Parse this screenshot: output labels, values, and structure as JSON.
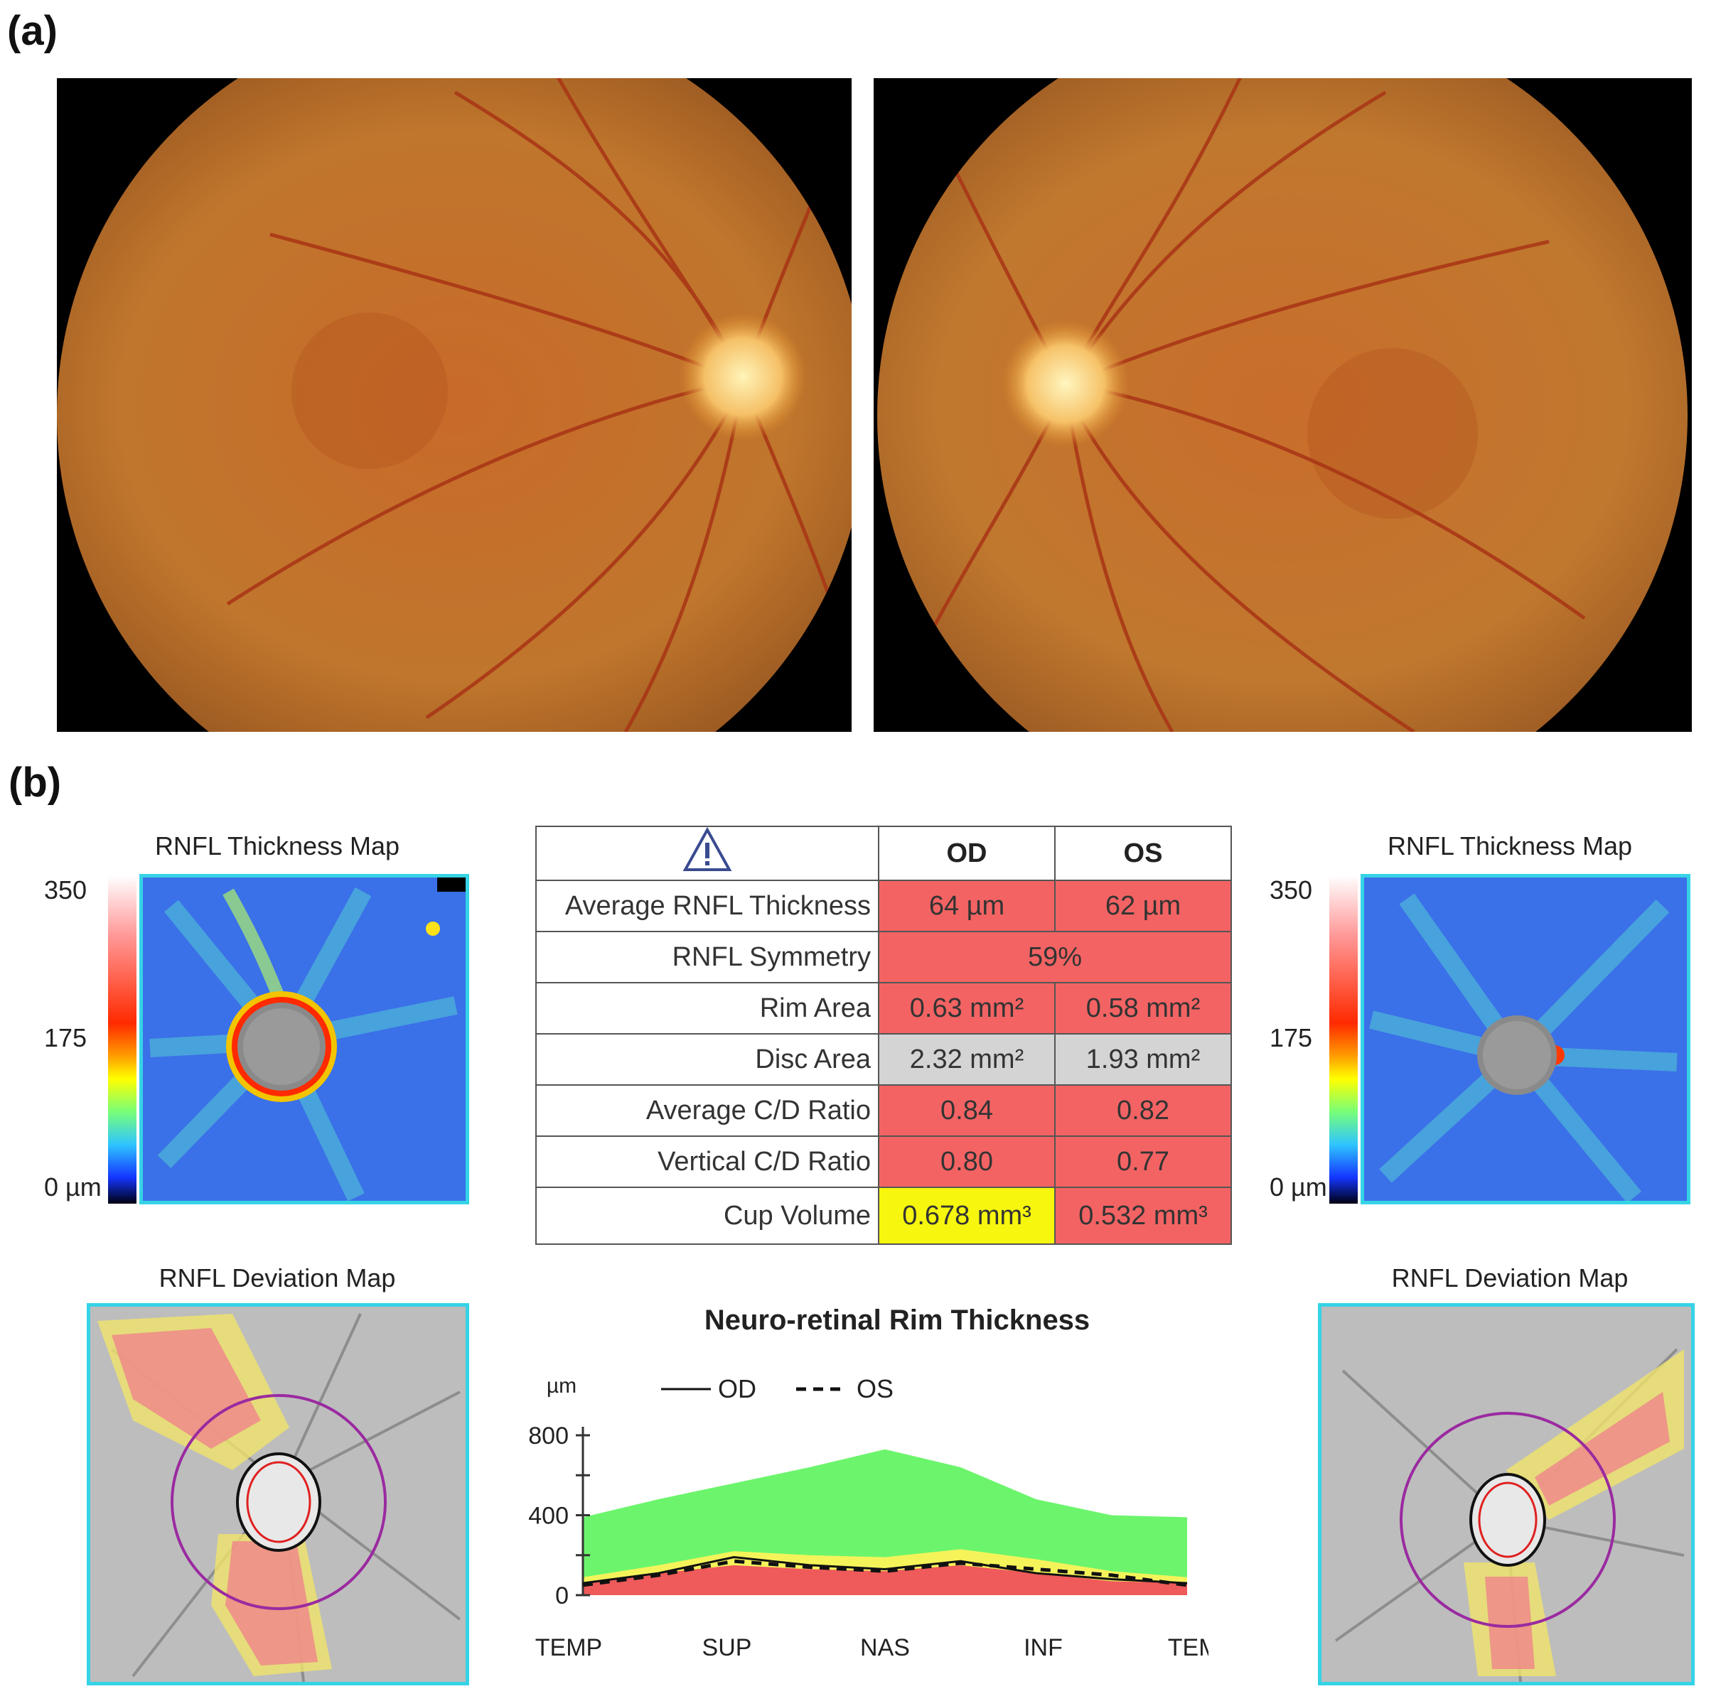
{
  "panels": {
    "a_label": "(a)",
    "b_label": "(b)"
  },
  "maps": {
    "thickness_title_od": "RNFL Thickness Map",
    "thickness_title_os": "RNFL Thickness Map",
    "deviation_title_od": "RNFL Deviation Map",
    "deviation_title_os": "RNFL Deviation Map",
    "scale_top": "350",
    "scale_mid": "175",
    "scale_bottom": "0 µm"
  },
  "table": {
    "col_od": "OD",
    "col_os": "OS",
    "rows": [
      {
        "label": "Average RNFL Thickness",
        "od": "64 µm",
        "os": "62 µm"
      },
      {
        "label": "RNFL Symmetry",
        "both": "59%"
      },
      {
        "label": "Rim Area",
        "od": "0.63 mm²",
        "os": "0.58 mm²"
      },
      {
        "label": "Disc Area",
        "od": "2.32 mm²",
        "os": "1.93 mm²"
      },
      {
        "label": "Average C/D Ratio",
        "od": "0.84",
        "os": "0.82"
      },
      {
        "label": "Vertical C/D Ratio",
        "od": "0.80",
        "os": "0.77"
      },
      {
        "label": "Cup Volume",
        "od": "0.678 mm³",
        "os": "0.532 mm³"
      }
    ],
    "colors": {
      "abnormal": "#f36363",
      "normal": "#d4d4d4",
      "borderline": "#f6f60e"
    }
  },
  "chart_data": {
    "type": "line",
    "title": "Neuro-retinal Rim Thickness",
    "ylabel": "µm",
    "ylim": [
      0,
      800
    ],
    "yticks": [
      "800",
      "400",
      "0"
    ],
    "categories": [
      "TEMP",
      "SUP",
      "NAS",
      "INF",
      "TEMP"
    ],
    "legend": [
      "OD",
      "OS"
    ],
    "x": [
      0,
      0.5,
      1,
      1.5,
      2,
      2.5,
      3,
      3.5,
      4
    ],
    "series": [
      {
        "name": "OD",
        "values": [
          60,
          110,
          190,
          150,
          130,
          170,
          110,
          80,
          60
        ]
      },
      {
        "name": "OS",
        "values": [
          50,
          100,
          170,
          140,
          120,
          160,
          130,
          100,
          50
        ]
      }
    ],
    "bands": [
      {
        "name": "normal",
        "color": "#6cf56c",
        "upper": [
          390,
          480,
          560,
          640,
          730,
          640,
          480,
          400,
          390
        ]
      },
      {
        "name": "borderline",
        "color": "#f4f45a",
        "upper": [
          90,
          150,
          220,
          200,
          190,
          230,
          180,
          120,
          90
        ]
      },
      {
        "name": "outside",
        "color": "#ef5a5a",
        "upper": [
          60,
          110,
          150,
          130,
          120,
          150,
          110,
          70,
          60
        ]
      }
    ]
  }
}
